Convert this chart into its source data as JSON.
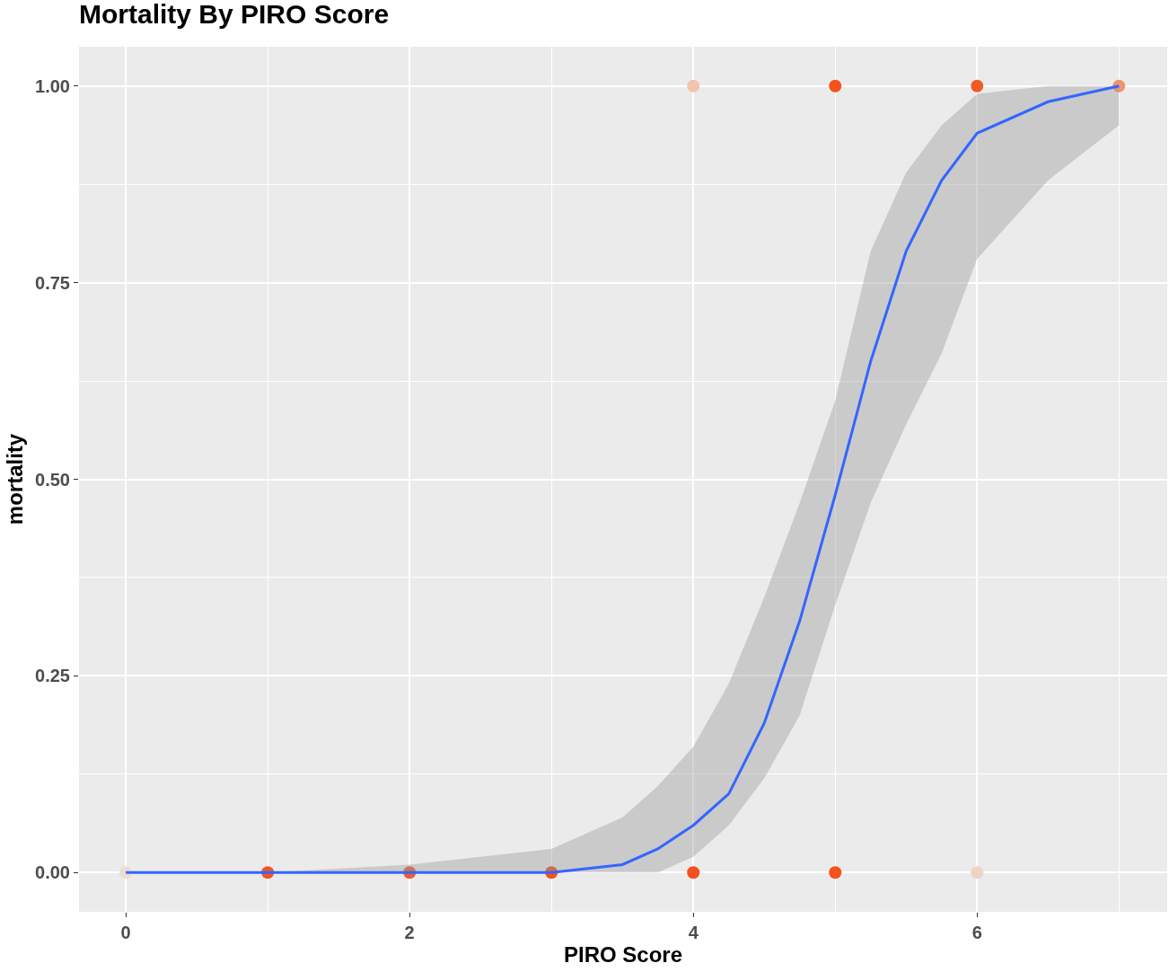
{
  "chart_data": {
    "type": "scatter",
    "title": "Mortality By PIRO Score",
    "xlabel": "PIRO Score",
    "ylabel": "mortality",
    "x": [
      4,
      5,
      6,
      7,
      0,
      1,
      2,
      3,
      4,
      5,
      6
    ],
    "series": [
      {
        "marker": "circle",
        "colors": [
          "#f3c3ae",
          "#f4511e",
          "#f25a25",
          "#ee9570",
          "#ecdcd2",
          "#f0542a",
          "#ee5a34",
          "#f4511e",
          "#f4511e",
          "#f4511e",
          "#f1d2c6"
        ],
        "values": [
          1,
          1,
          1,
          1,
          0,
          0,
          0,
          0,
          0,
          0,
          0
        ]
      },
      {
        "type": "line",
        "color": "#3366ff",
        "x": [
          0,
          1,
          2,
          2.5,
          3,
          3.5,
          3.75,
          4,
          4.25,
          4.5,
          4.75,
          5,
          5.25,
          5.5,
          5.75,
          6,
          6.5,
          7
        ],
        "values": [
          0,
          0,
          0,
          0,
          0,
          0.01,
          0.03,
          0.06,
          0.1,
          0.19,
          0.32,
          0.48,
          0.65,
          0.79,
          0.88,
          0.94,
          0.98,
          1
        ],
        "lower": [
          0,
          0,
          0,
          0,
          0,
          0,
          0,
          0.02,
          0.06,
          0.12,
          0.2,
          0.34,
          0.47,
          0.57,
          0.66,
          0.78,
          0.88,
          0.95
        ],
        "upper": [
          0,
          0,
          0.01,
          0.02,
          0.03,
          0.07,
          0.11,
          0.16,
          0.24,
          0.35,
          0.47,
          0.6,
          0.79,
          0.89,
          0.95,
          0.99,
          1,
          1
        ]
      }
    ],
    "xlim": [
      -0.33,
      7.34
    ],
    "xticks": [
      0,
      2,
      4,
      6
    ],
    "ylim": [
      -0.05,
      1.05
    ],
    "yticks": [
      {
        "value": 0,
        "label": "0.00"
      },
      {
        "value": 0.25,
        "label": "0.25"
      },
      {
        "value": 0.5,
        "label": "0.50"
      },
      {
        "value": 0.75,
        "label": "0.75"
      },
      {
        "value": 1,
        "label": "1.00"
      }
    ],
    "grid": true,
    "line_style": "solid"
  }
}
